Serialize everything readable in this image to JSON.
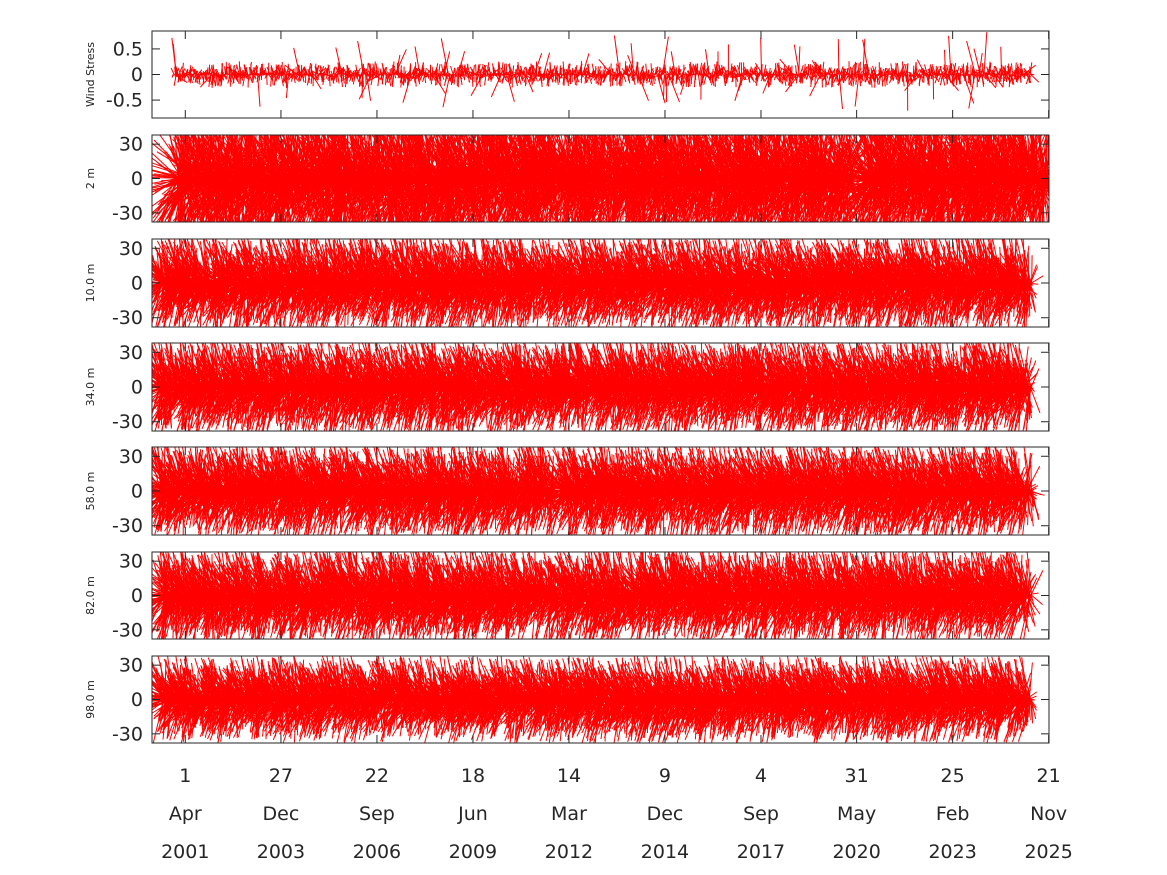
{
  "chart_data": [
    {
      "type": "quiver",
      "ylabel": "Wind Stress",
      "yticks": [
        0.5,
        0,
        -0.5
      ],
      "yticklabels": [
        "0.5",
        "0",
        "-0.5"
      ],
      "ylim": [
        -0.85,
        0.85
      ],
      "amplitude": 0.22,
      "amplitude_peak": 0.85,
      "color": "#ff0000",
      "vector_segments": [
        {
          "from": 2000.9,
          "to": 2025.4
        }
      ]
    },
    {
      "type": "quiver",
      "ylabel": "2 m",
      "yticks": [
        30,
        0,
        -30
      ],
      "yticklabels": [
        "30",
        "0",
        "-30"
      ],
      "ylim": [
        -38,
        38
      ],
      "amplitude": 60,
      "color": "#ff0000",
      "vector_segments": [
        {
          "from": 2001.0,
          "to": 2020.3
        },
        {
          "from": 2020.6,
          "to": 2025.9
        }
      ]
    },
    {
      "type": "quiver",
      "ylabel": "10.0 m",
      "yticks": [
        30,
        0,
        -30
      ],
      "yticklabels": [
        "30",
        "0",
        "-30"
      ],
      "ylim": [
        -38,
        38
      ],
      "amplitude": 34,
      "color": "#ff0000",
      "vector_segments": [
        {
          "from": 2000.5,
          "to": 2011.9
        },
        {
          "from": 2011.9,
          "to": 2025.4
        }
      ]
    },
    {
      "type": "quiver",
      "ylabel": "34.0 m",
      "yticks": [
        30,
        0,
        -30
      ],
      "yticklabels": [
        "30",
        "0",
        "-30"
      ],
      "ylim": [
        -38,
        38
      ],
      "amplitude": 34,
      "color": "#ff0000",
      "vector_segments": [
        {
          "from": 2000.5,
          "to": 2011.9
        },
        {
          "from": 2011.9,
          "to": 2025.4
        }
      ]
    },
    {
      "type": "quiver",
      "ylabel": "58.0 m",
      "yticks": [
        30,
        0,
        -30
      ],
      "yticklabels": [
        "30",
        "0",
        "-30"
      ],
      "ylim": [
        -38,
        38
      ],
      "amplitude": 34,
      "color": "#ff0000",
      "vector_segments": [
        {
          "from": 2000.5,
          "to": 2011.8
        },
        {
          "from": 2012.0,
          "to": 2025.4
        }
      ]
    },
    {
      "type": "quiver",
      "ylabel": "82.0 m",
      "yticks": [
        30,
        0,
        -30
      ],
      "yticklabels": [
        "30",
        "0",
        "-30"
      ],
      "ylim": [
        -38,
        38
      ],
      "amplitude": 34,
      "color": "#ff0000",
      "vector_segments": [
        {
          "from": 2000.6,
          "to": 2011.9
        },
        {
          "from": 2012.0,
          "to": 2025.4
        }
      ]
    },
    {
      "type": "quiver",
      "ylabel": "98.0 m",
      "yticks": [
        30,
        0,
        -30
      ],
      "yticklabels": [
        "30",
        "0",
        "-30"
      ],
      "ylim": [
        -38,
        38
      ],
      "amplitude": 30,
      "color": "#ff0000",
      "vector_segments": [
        {
          "from": 2000.6,
          "to": 2011.9
        },
        {
          "from": 2011.9,
          "to": 2016.5
        },
        {
          "from": 2016.5,
          "to": 2025.4
        }
      ]
    }
  ],
  "x_axis": {
    "xlim": [
      2000.3,
      2025.9
    ],
    "ticks": [
      {
        "x": 2001.25,
        "day": "1",
        "month": "Apr",
        "year": "2001"
      },
      {
        "x": 2003.98,
        "day": "27",
        "month": "Dec",
        "year": "2003"
      },
      {
        "x": 2006.72,
        "day": "22",
        "month": "Sep",
        "year": "2006"
      },
      {
        "x": 2009.46,
        "day": "18",
        "month": "Jun",
        "year": "2009"
      },
      {
        "x": 2012.2,
        "day": "14",
        "month": "Mar",
        "year": "2012"
      },
      {
        "x": 2014.94,
        "day": "9",
        "month": "Dec",
        "year": "2014"
      },
      {
        "x": 2017.68,
        "day": "4",
        "month": "Sep",
        "year": "2017"
      },
      {
        "x": 2020.41,
        "day": "31",
        "month": "May",
        "year": "2020"
      },
      {
        "x": 2023.15,
        "day": "25",
        "month": "Feb",
        "year": "2023"
      },
      {
        "x": 2025.89,
        "day": "21",
        "month": "Nov",
        "year": "2025"
      }
    ]
  }
}
